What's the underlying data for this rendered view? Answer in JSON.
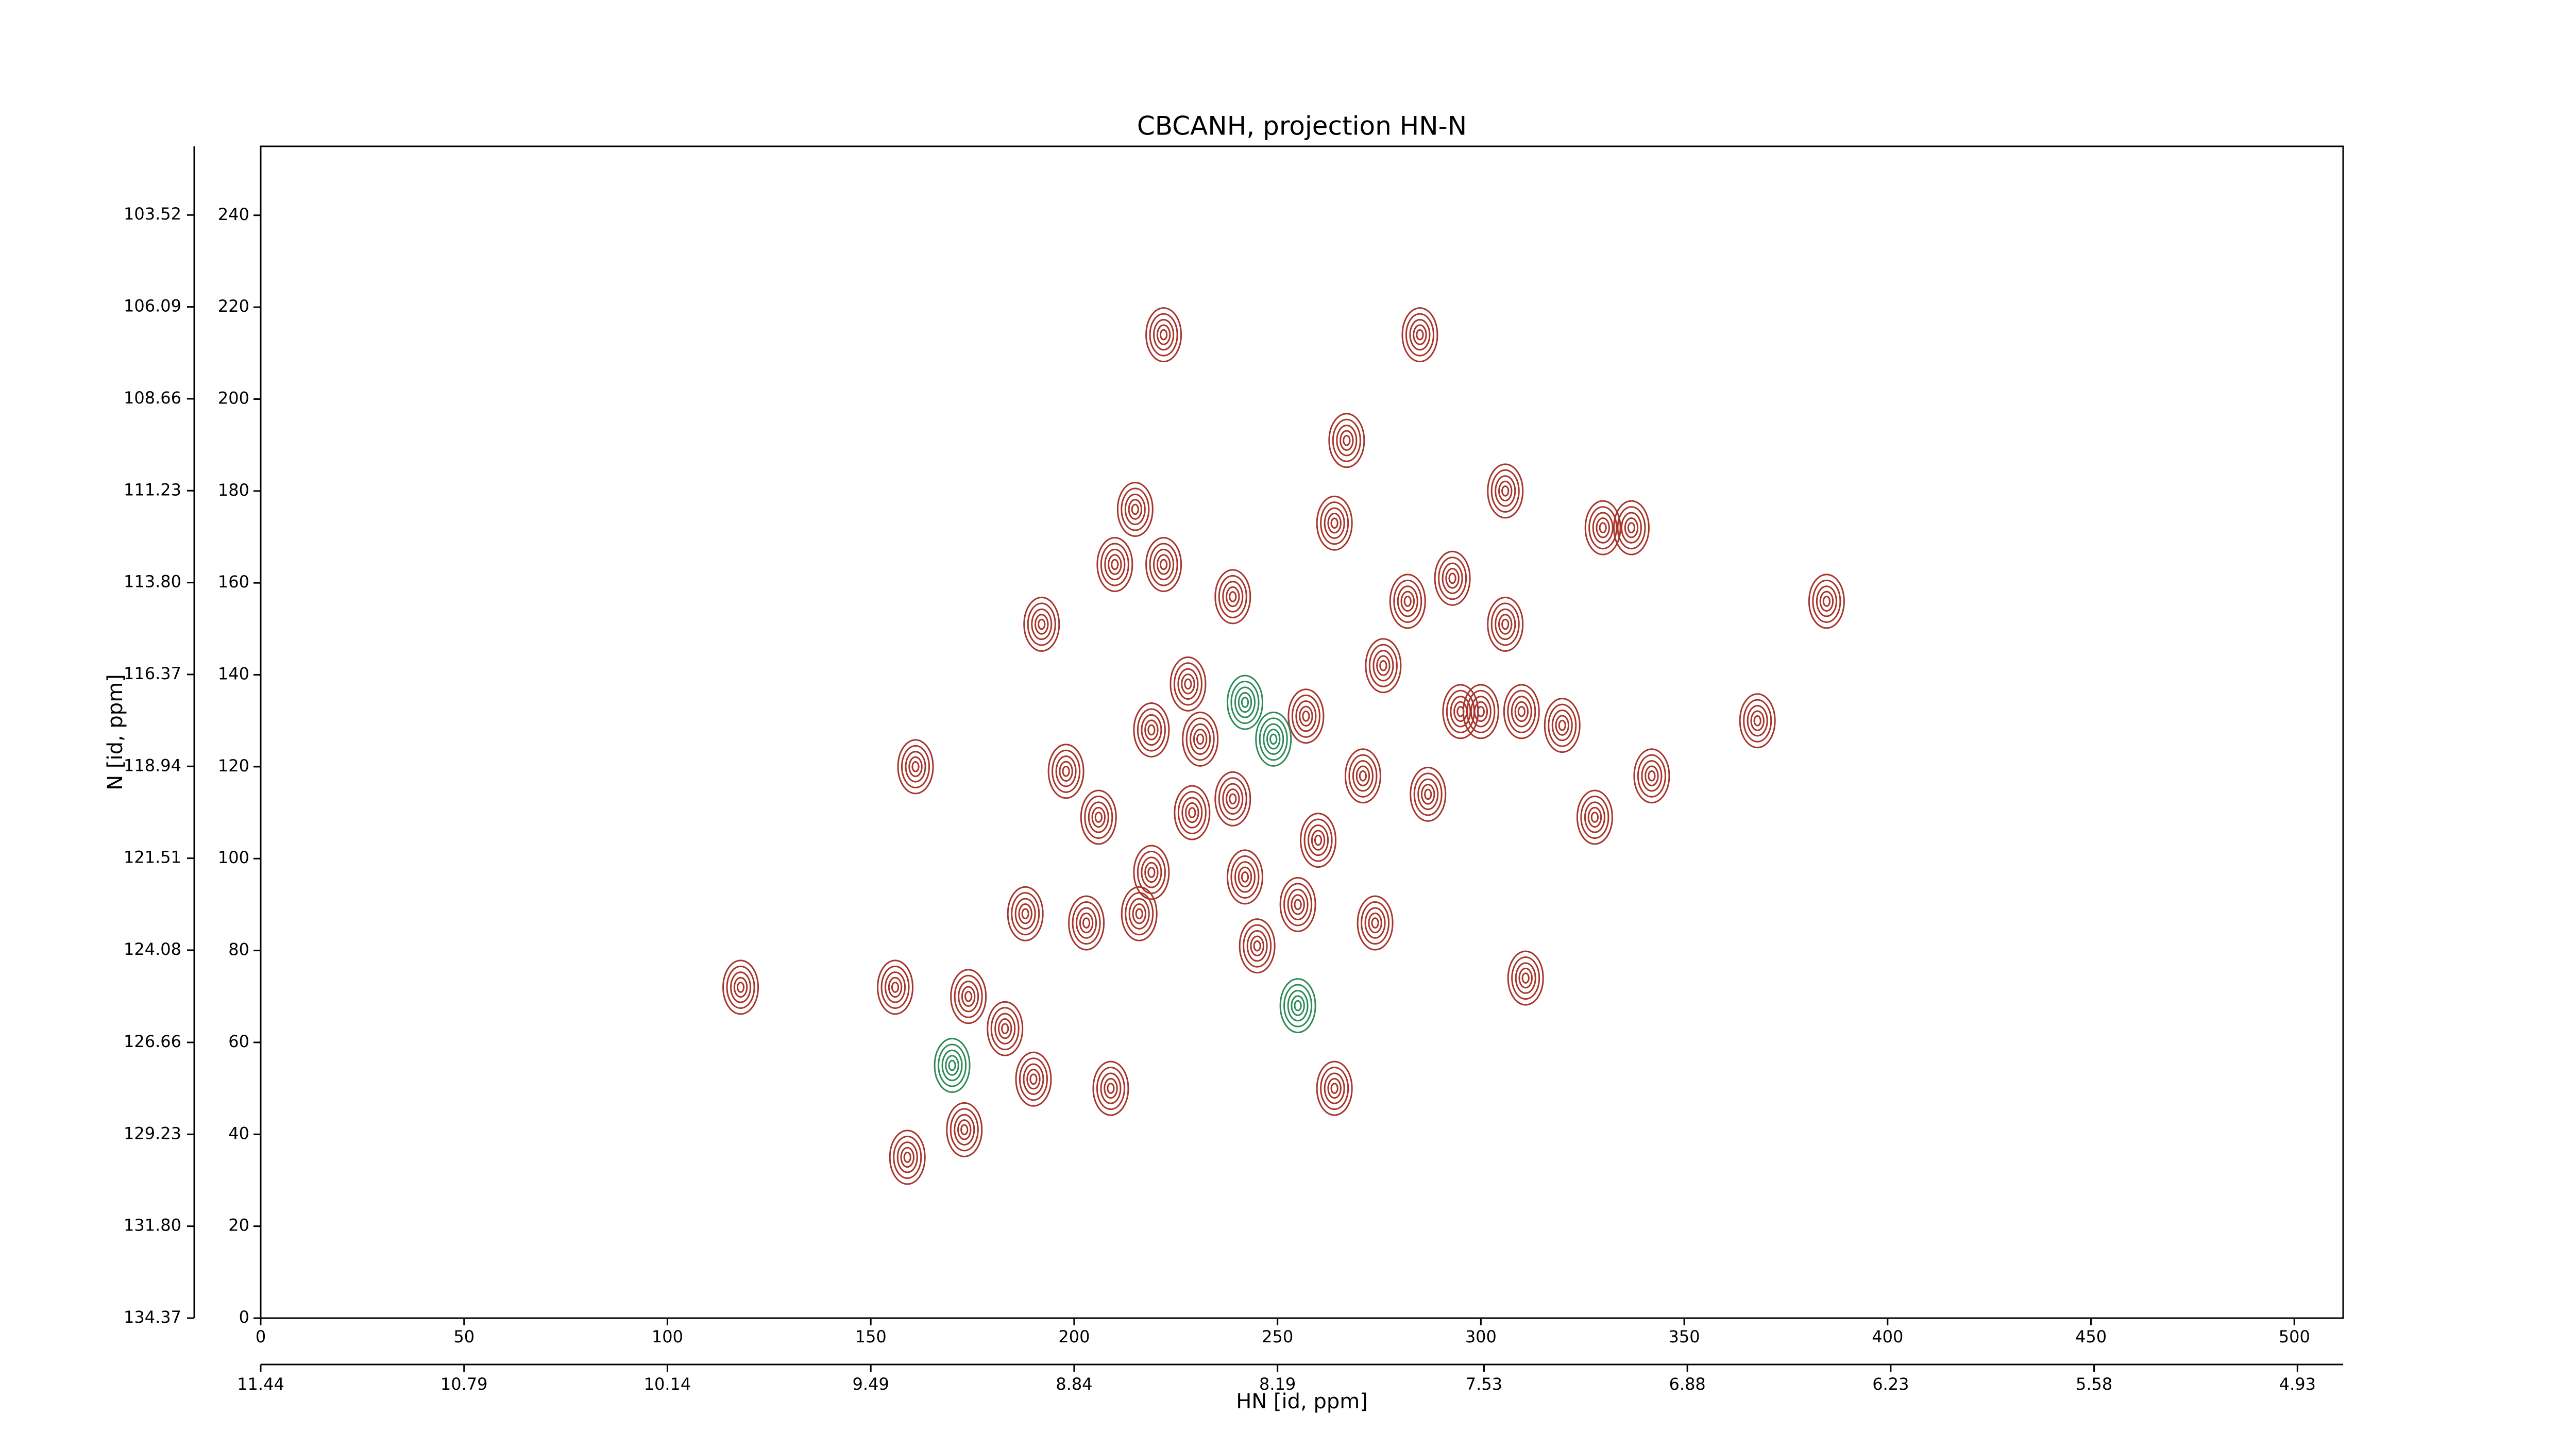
{
  "chart_data": {
    "type": "contour",
    "title": "CBCANH, projection HN-N",
    "xlabel": "HN [id, ppm]",
    "ylabel": "N [id, ppm]",
    "xlim": [
      0,
      512
    ],
    "ylim": [
      0,
      255
    ],
    "xticks": [
      0,
      50,
      100,
      150,
      200,
      250,
      300,
      350,
      400,
      450,
      500
    ],
    "yticks": [
      0,
      20,
      40,
      60,
      80,
      100,
      120,
      140,
      160,
      180,
      200,
      220,
      240
    ],
    "x2lim": [
      11.44,
      4.784
    ],
    "x2ticks": [
      11.44,
      10.79,
      10.14,
      9.49,
      8.84,
      8.19,
      7.53,
      6.88,
      6.23,
      5.58,
      4.93
    ],
    "y2lim": [
      134.37,
      101.6
    ],
    "y2ticks": [
      134.37,
      {
        "value": 131.8,
        "label": "131.80"
      },
      129.23,
      126.66,
      124.08,
      121.51,
      118.94,
      116.37,
      {
        "value": 113.8,
        "label": "113.80"
      },
      111.23,
      108.66,
      106.09,
      103.52
    ],
    "series": [
      {
        "color": "#a8352b",
        "x": [
          222,
          285,
          267,
          306,
          215,
          264,
          330,
          337,
          210,
          222,
          239,
          293,
          282,
          192,
          306,
          385,
          276,
          228,
          219,
          231,
          257,
          295,
          300,
          310,
          320,
          368,
          161,
          198,
          239,
          271,
          287,
          342,
          328,
          206,
          229,
          260,
          219,
          242,
          255,
          216,
          203,
          188,
          245,
          274,
          311,
          118,
          174,
          183,
          156,
          190,
          264,
          173,
          159,
          209
        ],
        "y": [
          214,
          214,
          191,
          180,
          176,
          173,
          172,
          172,
          164,
          164,
          157,
          161,
          156,
          151,
          151,
          156,
          142,
          138,
          128,
          126,
          131,
          132,
          132,
          132,
          129,
          130,
          120,
          119,
          113,
          118,
          114,
          118,
          109,
          109,
          110,
          104,
          97,
          96,
          90,
          88,
          86,
          88,
          81,
          86,
          74,
          72,
          70,
          63,
          72,
          52,
          50,
          41,
          35,
          50
        ]
      },
      {
        "color": "#2e8b57",
        "x": [
          255,
          242,
          249,
          170
        ],
        "y": [
          68,
          134,
          126,
          55
        ]
      }
    ]
  }
}
